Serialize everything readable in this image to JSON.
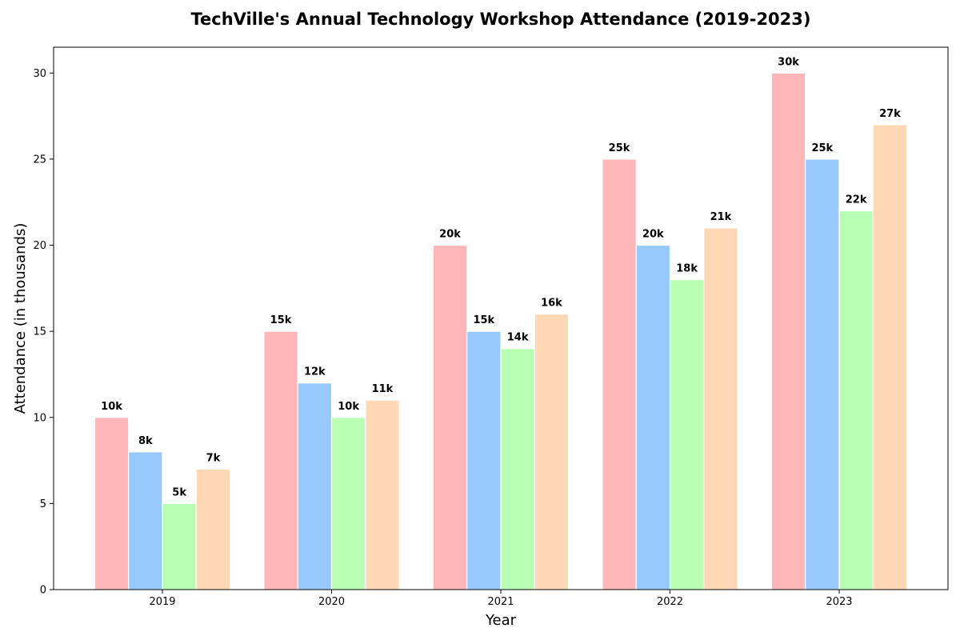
{
  "chart_data": {
    "type": "bar",
    "title": "TechVille's Annual Technology Workshop Attendance (2019-2023)",
    "xlabel": "Year",
    "ylabel": "Attendance (in thousands)",
    "categories": [
      "2019",
      "2020",
      "2021",
      "2022",
      "2023"
    ],
    "ylim": [
      0,
      31.5
    ],
    "yticks": [
      0,
      5,
      10,
      15,
      20,
      25,
      30
    ],
    "grid": false,
    "legend": "none",
    "series": [
      {
        "values": [
          10,
          15,
          20,
          25,
          30
        ],
        "labels": [
          "10k",
          "15k",
          "20k",
          "25k",
          "30k"
        ],
        "color": "#ffb6b9"
      },
      {
        "values": [
          8,
          12,
          15,
          20,
          25
        ],
        "labels": [
          "8k",
          "12k",
          "15k",
          "20k",
          "25k"
        ],
        "color": "#97c9ff"
      },
      {
        "values": [
          5,
          10,
          14,
          18,
          22
        ],
        "labels": [
          "5k",
          "10k",
          "14k",
          "18k",
          "22k"
        ],
        "color": "#b8ffb4"
      },
      {
        "values": [
          7,
          11,
          16,
          21,
          27
        ],
        "labels": [
          "7k",
          "11k",
          "16k",
          "21k",
          "27k"
        ],
        "color": "#ffd9b5"
      }
    ]
  }
}
